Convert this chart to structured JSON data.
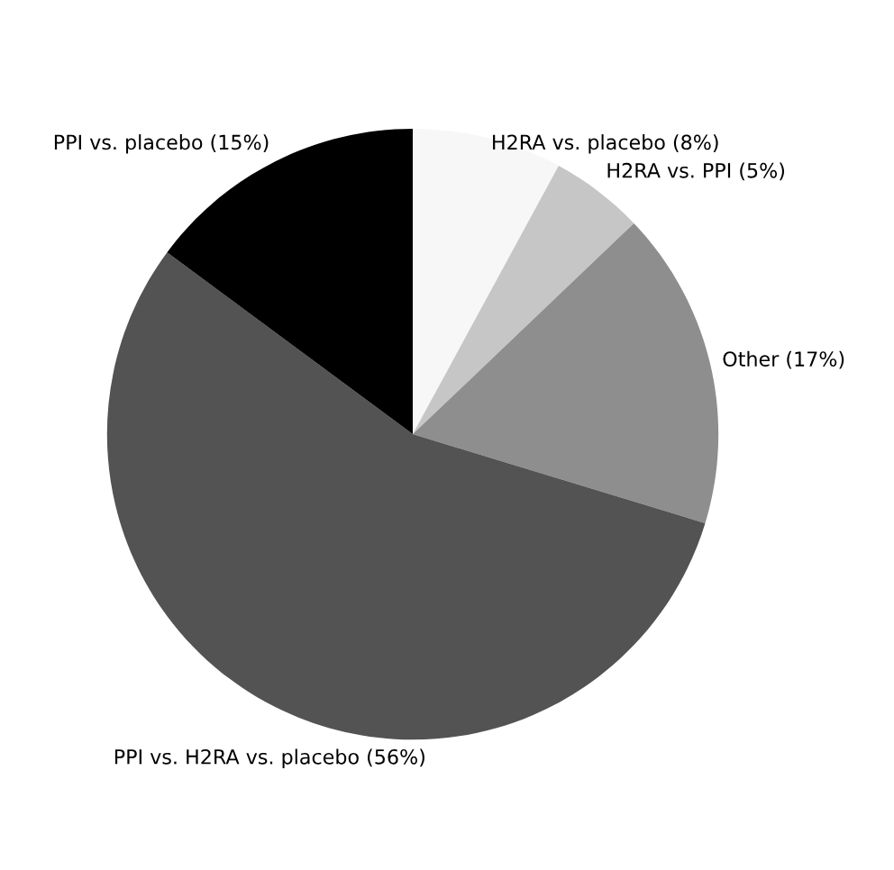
{
  "chart_data": {
    "type": "pie",
    "categories": [
      "H2RA vs. placebo (8%)",
      "H2RA vs. PPI (5%)",
      "Other (17%)",
      "PPI vs. H2RA vs. placebo (56%)",
      "PPI vs. placebo (15%)"
    ],
    "values": [
      8,
      5,
      17,
      56,
      15
    ],
    "colors": [
      "#f7f7f7",
      "#c6c6c6",
      "#8e8e8e",
      "#535353",
      "#000000"
    ],
    "legend": false
  }
}
